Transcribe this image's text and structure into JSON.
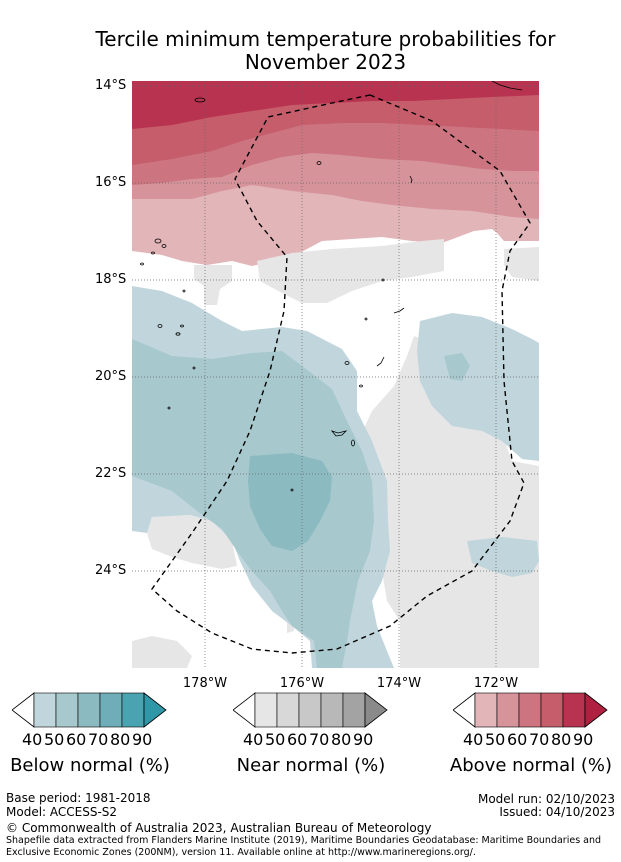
{
  "title": {
    "line1": "Tercile minimum temperature probabilities for",
    "line2": "November 2023"
  },
  "axes": {
    "lat_labels": [
      "14°S",
      "16°S",
      "18°S",
      "20°S",
      "22°S",
      "24°S"
    ],
    "lon_labels": [
      "178°W",
      "176°W",
      "174°W",
      "172°W"
    ]
  },
  "colorbars": [
    {
      "title": "Below normal (%)",
      "ticks": [
        "40",
        "50",
        "60",
        "70",
        "80",
        "90"
      ],
      "colors": [
        "#c0d6dc",
        "#a7c8cc",
        "#8cbac1",
        "#6faeb8",
        "#4aa3b1",
        "#2f97a8"
      ]
    },
    {
      "title": "Near normal (%)",
      "ticks": [
        "40",
        "50",
        "60",
        "70",
        "80",
        "90"
      ],
      "colors": [
        "#e6e6e6",
        "#d8d8d8",
        "#c8c8c8",
        "#b8b8b8",
        "#a3a3a3",
        "#8a8a8a"
      ]
    },
    {
      "title": "Above normal (%)",
      "ticks": [
        "40",
        "50",
        "60",
        "70",
        "80",
        "90"
      ],
      "colors": [
        "#e2b5b9",
        "#d6939a",
        "#cc7580",
        "#c55d6b",
        "#b83350",
        "#b02040"
      ]
    }
  ],
  "footer": {
    "base_period": "Base period: 1981-2018",
    "model": "Model: ACCESS-S2",
    "model_run": "Model run: 02/10/2023",
    "issued": "Issued: 04/10/2023",
    "copyright": "© Commonwealth of Australia 2023, Australian Bureau of Meteorology",
    "shapefile_line1": "Shapefile data extracted from Flanders Marine Institute (2019), Maritime Boundaries Geodatabase: Maritime Boundaries and",
    "shapefile_line2": "Exclusive Economic Zones (200NM), version 11. Available online at http://www.marineregions.org/."
  }
}
